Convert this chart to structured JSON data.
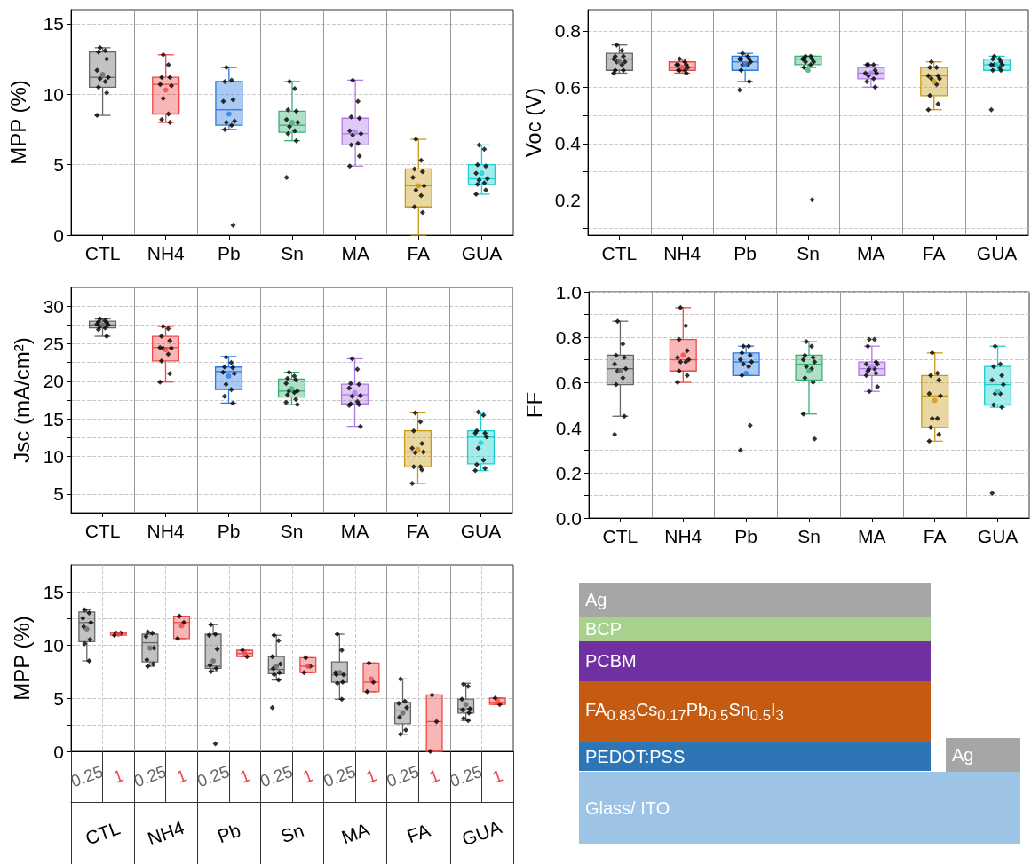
{
  "chart_data": [
    {
      "type": "box",
      "categories": [
        "CTL",
        "NH4",
        "Pb",
        "Sn",
        "MA",
        "FA",
        "GUA"
      ],
      "ylabel": "MPP (%)",
      "ylim": [
        0,
        16
      ],
      "yticks": [
        0,
        {
          "value": 2.5,
          "label": null
        },
        5,
        {
          "value": 7.5,
          "label": null
        },
        10,
        {
          "value": 12.5,
          "label": null
        },
        15
      ],
      "grid": true,
      "marker": "diamond",
      "series": [
        {
          "type": "box",
          "colors": [
            "#666666",
            "#f04848",
            "#2a7ae2",
            "#3aaf74",
            "#b07ae6",
            "#c99a14",
            "#1ccfcf"
          ],
          "boxes": [
            {
              "low": 8.5,
              "q1": 10.5,
              "median": 11.2,
              "q3": 13.0,
              "high": 13.3,
              "mean": 11.4
            },
            {
              "low": 8.0,
              "q1": 8.6,
              "median": 10.7,
              "q3": 11.2,
              "high": 12.8,
              "mean": 10.3
            },
            {
              "low": 7.5,
              "q1": 7.8,
              "median": 8.9,
              "q3": 10.9,
              "high": 11.9,
              "mean": 8.6
            },
            {
              "low": 6.7,
              "q1": 7.3,
              "median": 7.8,
              "q3": 8.8,
              "high": 10.9,
              "mean": 8.0
            },
            {
              "low": 4.9,
              "q1": 6.4,
              "median": 7.2,
              "q3": 8.3,
              "high": 11.0,
              "mean": 7.3
            },
            {
              "low": 0,
              "q1": 2.0,
              "median": 3.5,
              "q3": 4.7,
              "high": 6.8,
              "mean": 3.5
            },
            {
              "low": 2.9,
              "q1": 3.6,
              "median": 4.0,
              "q3": 5.0,
              "high": 6.4,
              "mean": 4.4
            }
          ]
        },
        {
          "type": "scatter",
          "color": "#000000",
          "x": [
            "CTL",
            "CTL",
            "CTL",
            "CTL",
            "CTL",
            "CTL",
            "CTL",
            "CTL",
            "CTL",
            "CTL",
            "CTL",
            "NH4",
            "NH4",
            "NH4",
            "NH4",
            "NH4",
            "NH4",
            "NH4",
            "NH4",
            "NH4",
            "NH4",
            "Pb",
            "Pb",
            "Pb",
            "Pb",
            "Pb",
            "Pb",
            "Pb",
            "Pb",
            "Pb",
            "Pb",
            "Sn",
            "Sn",
            "Sn",
            "Sn",
            "Sn",
            "Sn",
            "Sn",
            "Sn",
            "Sn",
            "Sn",
            "Sn",
            "MA",
            "MA",
            "MA",
            "MA",
            "MA",
            "MA",
            "MA",
            "MA",
            "MA",
            "MA",
            "MA",
            "FA",
            "FA",
            "FA",
            "FA",
            "FA",
            "FA",
            "FA",
            "FA",
            "FA",
            "FA",
            "GUA",
            "GUA",
            "GUA",
            "GUA",
            "GUA",
            "GUA",
            "GUA",
            "GUA",
            "GUA",
            "GUA",
            "GUA"
          ],
          "values": [
            13.3,
            13.1,
            13.0,
            12.5,
            11.7,
            11.2,
            11.1,
            10.9,
            10.5,
            10.1,
            8.5,
            12.8,
            12.1,
            11.2,
            11.2,
            10.7,
            10.6,
            9.7,
            8.6,
            8.2,
            8.0,
            11.9,
            11.0,
            10.9,
            9.6,
            9.5,
            8.1,
            8.0,
            7.8,
            7.5,
            0.7,
            10.9,
            10.4,
            8.9,
            8.8,
            8.2,
            8.0,
            7.7,
            7.4,
            7.2,
            6.7,
            4.1,
            11.0,
            9.5,
            8.4,
            8.3,
            7.4,
            7.2,
            7.1,
            6.5,
            6.4,
            5.6,
            4.9,
            6.8,
            5.3,
            4.7,
            4.5,
            4.1,
            3.5,
            3.2,
            2.8,
            2.0,
            1.6,
            6.4,
            6.1,
            5.0,
            4.9,
            4.4,
            4.0,
            3.9,
            3.7,
            3.6,
            3.2,
            2.9
          ]
        }
      ]
    },
    {
      "type": "box",
      "categories": [
        "CTL",
        "NH4",
        "Pb",
        "Sn",
        "MA",
        "FA",
        "GUA"
      ],
      "ylabel": "Voc (V)",
      "ylim": [
        0.075,
        0.875
      ],
      "yticks": [
        {
          "value": 0.1,
          "label": null
        },
        0.2,
        {
          "value": 0.3,
          "label": null
        },
        0.4,
        {
          "value": 0.5,
          "label": null
        },
        0.6,
        {
          "value": 0.7,
          "label": null
        },
        0.8
      ],
      "grid": true,
      "marker": "diamond",
      "series": [
        {
          "type": "box",
          "colors": [
            "#666666",
            "#f04848",
            "#2a7ae2",
            "#3aaf74",
            "#b07ae6",
            "#c99a14",
            "#1ccfcf"
          ],
          "boxes": [
            {
              "low": 0.65,
              "q1": 0.66,
              "median": 0.7,
              "q3": 0.72,
              "high": 0.75,
              "mean": 0.69
            },
            {
              "low": 0.65,
              "q1": 0.66,
              "median": 0.67,
              "q3": 0.69,
              "high": 0.7,
              "mean": 0.67
            },
            {
              "low": 0.62,
              "q1": 0.66,
              "median": 0.69,
              "q3": 0.71,
              "high": 0.72,
              "mean": 0.68
            },
            {
              "low": 0.67,
              "q1": 0.68,
              "median": 0.7,
              "q3": 0.71,
              "high": 0.71,
              "mean": 0.66
            },
            {
              "low": 0.6,
              "q1": 0.63,
              "median": 0.65,
              "q3": 0.67,
              "high": 0.68,
              "mean": 0.65
            },
            {
              "low": 0.52,
              "q1": 0.57,
              "median": 0.64,
              "q3": 0.67,
              "high": 0.69,
              "mean": 0.62
            },
            {
              "low": 0.66,
              "q1": 0.66,
              "median": 0.68,
              "q3": 0.7,
              "high": 0.71,
              "mean": 0.68
            }
          ]
        },
        {
          "type": "scatter",
          "color": "#000000",
          "x": [
            "CTL",
            "CTL",
            "CTL",
            "CTL",
            "CTL",
            "CTL",
            "CTL",
            "CTL",
            "CTL",
            "CTL",
            "CTL",
            "NH4",
            "NH4",
            "NH4",
            "NH4",
            "NH4",
            "NH4",
            "NH4",
            "NH4",
            "NH4",
            "NH4",
            "Pb",
            "Pb",
            "Pb",
            "Pb",
            "Pb",
            "Pb",
            "Pb",
            "Pb",
            "Pb",
            "Pb",
            "Pb",
            "Sn",
            "Sn",
            "Sn",
            "Sn",
            "Sn",
            "Sn",
            "Sn",
            "Sn",
            "Sn",
            "Sn",
            "MA",
            "MA",
            "MA",
            "MA",
            "MA",
            "MA",
            "MA",
            "MA",
            "MA",
            "MA",
            "FA",
            "FA",
            "FA",
            "FA",
            "FA",
            "FA",
            "FA",
            "FA",
            "FA",
            "FA",
            "FA",
            "GUA",
            "GUA",
            "GUA",
            "GUA",
            "GUA",
            "GUA",
            "GUA",
            "GUA",
            "GUA",
            "GUA",
            "GUA"
          ],
          "values": [
            0.75,
            0.73,
            0.71,
            0.71,
            0.7,
            0.69,
            0.69,
            0.68,
            0.66,
            0.66,
            0.65,
            0.7,
            0.69,
            0.68,
            0.68,
            0.68,
            0.67,
            0.66,
            0.66,
            0.66,
            0.65,
            0.72,
            0.71,
            0.7,
            0.7,
            0.7,
            0.69,
            0.68,
            0.68,
            0.66,
            0.62,
            0.59,
            0.71,
            0.71,
            0.7,
            0.7,
            0.7,
            0.69,
            0.69,
            0.68,
            0.67,
            0.2,
            0.68,
            0.68,
            0.68,
            0.66,
            0.65,
            0.65,
            0.64,
            0.63,
            0.62,
            0.6,
            0.69,
            0.67,
            0.67,
            0.64,
            0.64,
            0.63,
            0.63,
            0.61,
            0.57,
            0.54,
            0.52,
            0.71,
            0.7,
            0.7,
            0.69,
            0.68,
            0.68,
            0.68,
            0.67,
            0.66,
            0.66,
            0.52
          ]
        }
      ]
    },
    {
      "type": "box",
      "categories": [
        "CTL",
        "NH4",
        "Pb",
        "Sn",
        "MA",
        "FA",
        "GUA"
      ],
      "ylabel": "Jsc (mA/cm²)",
      "ylim": [
        2.5,
        32.5
      ],
      "yticks": [
        5,
        {
          "value": 7.5,
          "label": null
        },
        10,
        {
          "value": 12.5,
          "label": null
        },
        15,
        {
          "value": 17.5,
          "label": null
        },
        20,
        {
          "value": 22.5,
          "label": null
        },
        25,
        {
          "value": 27.5,
          "label": null
        },
        30
      ],
      "grid": true,
      "marker": "diamond",
      "series": [
        {
          "type": "box",
          "colors": [
            "#666666",
            "#f04848",
            "#2a7ae2",
            "#3aaf74",
            "#b07ae6",
            "#c99a14",
            "#1ccfcf"
          ],
          "boxes": [
            {
              "low": 26.0,
              "q1": 27.1,
              "median": 27.5,
              "q3": 28.0,
              "high": 28.3,
              "mean": 27.5
            },
            {
              "low": 19.9,
              "q1": 22.7,
              "median": 24.5,
              "q3": 26.0,
              "high": 27.3,
              "mean": 24.2
            },
            {
              "low": 17.1,
              "q1": 18.9,
              "median": 21.3,
              "q3": 21.9,
              "high": 23.3,
              "mean": 20.7
            },
            {
              "low": 16.9,
              "q1": 17.9,
              "median": 18.7,
              "q3": 20.3,
              "high": 21.2,
              "mean": 19.0
            },
            {
              "low": 14.0,
              "q1": 17.0,
              "median": 18.2,
              "q3": 19.6,
              "high": 23.0,
              "mean": 18.5
            },
            {
              "low": 6.4,
              "q1": 8.6,
              "median": 10.6,
              "q3": 13.4,
              "high": 15.8,
              "mean": 10.9
            },
            {
              "low": 8.1,
              "q1": 9.0,
              "median": 12.6,
              "q3": 13.4,
              "high": 15.9,
              "mean": 11.8
            }
          ]
        },
        {
          "type": "scatter",
          "color": "#000000",
          "x": [
            "CTL",
            "CTL",
            "CTL",
            "CTL",
            "CTL",
            "CTL",
            "CTL",
            "CTL",
            "CTL",
            "CTL",
            "NH4",
            "NH4",
            "NH4",
            "NH4",
            "NH4",
            "NH4",
            "NH4",
            "NH4",
            "NH4",
            "NH4",
            "NH4",
            "Pb",
            "Pb",
            "Pb",
            "Pb",
            "Pb",
            "Pb",
            "Pb",
            "Pb",
            "Pb",
            "Pb",
            "Sn",
            "Sn",
            "Sn",
            "Sn",
            "Sn",
            "Sn",
            "Sn",
            "Sn",
            "Sn",
            "Sn",
            "Sn",
            "Sn",
            "MA",
            "MA",
            "MA",
            "MA",
            "MA",
            "MA",
            "MA",
            "MA",
            "MA",
            "MA",
            "MA",
            "MA",
            "FA",
            "FA",
            "FA",
            "FA",
            "FA",
            "FA",
            "FA",
            "FA",
            "FA",
            "FA",
            "FA",
            "GUA",
            "GUA",
            "GUA",
            "GUA",
            "GUA",
            "GUA",
            "GUA",
            "GUA",
            "GUA",
            "GUA",
            "GUA"
          ],
          "values": [
            28.3,
            28.1,
            27.9,
            27.8,
            27.6,
            27.5,
            27.3,
            27.1,
            26.9,
            26.0,
            27.3,
            27.0,
            26.0,
            25.4,
            24.5,
            24.4,
            24.4,
            23.6,
            22.7,
            21.0,
            19.9,
            23.2,
            22.5,
            21.9,
            21.8,
            21.2,
            21.0,
            19.6,
            18.9,
            18.0,
            17.1,
            21.2,
            20.7,
            20.4,
            20.2,
            19.7,
            18.7,
            18.7,
            18.5,
            18.2,
            17.6,
            17.2,
            16.9,
            23.0,
            21.6,
            19.7,
            19.6,
            19.1,
            18.1,
            18.0,
            17.3,
            17.0,
            16.9,
            16.8,
            14.0,
            15.8,
            14.6,
            13.4,
            11.7,
            11.1,
            10.6,
            10.5,
            8.6,
            8.6,
            8.2,
            6.4,
            15.9,
            15.5,
            13.4,
            13.1,
            13.1,
            12.6,
            11.1,
            9.5,
            8.9,
            8.4,
            8.1
          ]
        }
      ]
    },
    {
      "type": "box",
      "categories": [
        "CTL",
        "NH4",
        "Pb",
        "Sn",
        "MA",
        "FA",
        "GUA"
      ],
      "ylabel": "FF",
      "ylim": [
        0,
        1
      ],
      "yticks": [
        {
          "value": 0,
          "label": "0.0"
        },
        {
          "value": 0.1,
          "label": null
        },
        0.2,
        {
          "value": 0.3,
          "label": null
        },
        0.4,
        {
          "value": 0.5,
          "label": null
        },
        0.6,
        {
          "value": 0.7,
          "label": null
        },
        0.8,
        {
          "value": 0.9,
          "label": null
        },
        {
          "value": 1,
          "label": "1.0"
        }
      ],
      "grid": true,
      "marker": "diamond",
      "series": [
        {
          "type": "box",
          "colors": [
            "#666666",
            "#f04848",
            "#2a7ae2",
            "#3aaf74",
            "#b07ae6",
            "#c99a14",
            "#1ccfcf"
          ],
          "boxes": [
            {
              "low": 0.45,
              "q1": 0.59,
              "median": 0.66,
              "q3": 0.72,
              "high": 0.87,
              "mean": 0.65
            },
            {
              "low": 0.6,
              "q1": 0.65,
              "median": 0.7,
              "q3": 0.79,
              "high": 0.93,
              "mean": 0.72
            },
            {
              "low": 0.63,
              "q1": 0.63,
              "median": 0.69,
              "q3": 0.73,
              "high": 0.76,
              "mean": 0.64
            },
            {
              "low": 0.46,
              "q1": 0.61,
              "median": 0.68,
              "q3": 0.72,
              "high": 0.78,
              "mean": 0.65
            },
            {
              "low": 0.56,
              "q1": 0.63,
              "median": 0.66,
              "q3": 0.69,
              "high": 0.76,
              "mean": 0.67
            },
            {
              "low": 0.34,
              "q1": 0.4,
              "median": 0.54,
              "q3": 0.63,
              "high": 0.73,
              "mean": 0.52
            },
            {
              "low": 0.49,
              "q1": 0.5,
              "median": 0.59,
              "q3": 0.67,
              "high": 0.76,
              "mean": 0.56
            }
          ]
        },
        {
          "type": "scatter",
          "color": "#000000",
          "x": [
            "CTL",
            "CTL",
            "CTL",
            "CTL",
            "CTL",
            "CTL",
            "CTL",
            "CTL",
            "CTL",
            "CTL",
            "CTL",
            "NH4",
            "NH4",
            "NH4",
            "NH4",
            "NH4",
            "NH4",
            "NH4",
            "NH4",
            "NH4",
            "NH4",
            "NH4",
            "Pb",
            "Pb",
            "Pb",
            "Pb",
            "Pb",
            "Pb",
            "Pb",
            "Pb",
            "Pb",
            "Pb",
            "Pb",
            "Sn",
            "Sn",
            "Sn",
            "Sn",
            "Sn",
            "Sn",
            "Sn",
            "Sn",
            "Sn",
            "Sn",
            "Sn",
            "Sn",
            "MA",
            "MA",
            "MA",
            "MA",
            "MA",
            "MA",
            "MA",
            "MA",
            "MA",
            "MA",
            "MA",
            "MA",
            "MA",
            "FA",
            "FA",
            "FA",
            "FA",
            "FA",
            "FA",
            "FA",
            "FA",
            "FA",
            "FA",
            "FA",
            "GUA",
            "GUA",
            "GUA",
            "GUA",
            "GUA",
            "GUA",
            "GUA",
            "GUA",
            "GUA",
            "GUA",
            "GUA"
          ],
          "values": [
            0.87,
            0.77,
            0.72,
            0.71,
            0.68,
            0.66,
            0.65,
            0.62,
            0.59,
            0.45,
            0.37,
            0.93,
            0.85,
            0.79,
            0.74,
            0.71,
            0.7,
            0.69,
            0.69,
            0.65,
            0.63,
            0.6,
            0.76,
            0.76,
            0.73,
            0.72,
            0.7,
            0.69,
            0.68,
            0.67,
            0.63,
            0.41,
            0.3,
            0.78,
            0.76,
            0.72,
            0.71,
            0.7,
            0.69,
            0.67,
            0.66,
            0.62,
            0.6,
            0.46,
            0.35,
            0.79,
            0.79,
            0.76,
            0.69,
            0.68,
            0.68,
            0.66,
            0.66,
            0.65,
            0.64,
            0.63,
            0.58,
            0.56,
            0.73,
            0.64,
            0.63,
            0.61,
            0.55,
            0.54,
            0.44,
            0.44,
            0.4,
            0.37,
            0.34,
            0.76,
            0.68,
            0.67,
            0.63,
            0.61,
            0.59,
            0.55,
            0.55,
            0.5,
            0.49,
            0.11
          ]
        }
      ]
    },
    {
      "type": "box",
      "categories": [
        "CTL",
        "NH4",
        "Pb",
        "Sn",
        "MA",
        "FA",
        "GUA"
      ],
      "ylabel": "MPP (%)",
      "ylim": [
        0,
        17.5
      ],
      "yticks": [
        0,
        {
          "value": 2.5,
          "label": null
        },
        5,
        {
          "value": 7.5,
          "label": null
        },
        10,
        {
          "value": 12.5,
          "label": null
        },
        15
      ],
      "grid": true,
      "marker": "diamond",
      "series": [
        {
          "type": "box",
          "name": "0.25",
          "color": "#666666",
          "boxes": [
            {
              "low": 8.5,
              "q1": 10.3,
              "median": 12.1,
              "q3": 13.1,
              "high": 13.3,
              "mean": 11.5
            },
            {
              "low": 8.0,
              "q1": 8.4,
              "median": 10.2,
              "q3": 11.0,
              "high": 11.2,
              "mean": 9.7
            },
            {
              "low": 7.5,
              "q1": 7.8,
              "median": 8.0,
              "q3": 11.0,
              "high": 11.9,
              "mean": 8.5
            },
            {
              "low": 6.7,
              "q1": 7.3,
              "median": 7.7,
              "q3": 8.9,
              "high": 10.9,
              "mean": 8.0
            },
            {
              "low": 4.9,
              "q1": 6.5,
              "median": 7.2,
              "q3": 8.4,
              "high": 11.0,
              "mean": 7.4
            },
            {
              "low": 1.6,
              "q1": 2.6,
              "median": 3.8,
              "q3": 4.6,
              "high": 6.8,
              "mean": 3.6
            },
            {
              "low": 2.9,
              "q1": 3.6,
              "median": 4.0,
              "q3": 4.9,
              "high": 6.4,
              "mean": 4.4
            }
          ]
        },
        {
          "type": "box",
          "name": "1",
          "color": "#f04848",
          "boxes": [
            {
              "low": 10.9,
              "q1": 10.9,
              "median": 11.1,
              "q3": 11.2,
              "high": 11.2,
              "mean": 11.0
            },
            {
              "low": 10.6,
              "q1": 10.6,
              "median": 12.1,
              "q3": 12.7,
              "high": 12.7,
              "mean": 11.8
            },
            {
              "low": 8.9,
              "q1": 8.9,
              "median": 9.2,
              "q3": 9.5,
              "high": 9.5,
              "mean": 9.2
            },
            {
              "low": 7.4,
              "q1": 7.4,
              "median": 8.0,
              "q3": 8.8,
              "high": 8.8,
              "mean": 8.0
            },
            {
              "low": 5.6,
              "q1": 5.6,
              "median": 6.5,
              "q3": 8.3,
              "high": 8.3,
              "mean": 6.8
            },
            {
              "low": 0,
              "q1": 0,
              "median": 2.8,
              "q3": 5.3,
              "high": 5.3
            },
            {
              "low": 4.4,
              "q1": 4.4,
              "median": 4.6,
              "q3": 5.0,
              "high": 5.0,
              "mean": 4.7
            }
          ]
        },
        {
          "type": "scatter",
          "color": "#000000",
          "x": [
            "CTL",
            "CTL",
            "CTL",
            "CTL",
            "CTL",
            "CTL",
            "CTL",
            "CTL",
            "NH4",
            "NH4",
            "NH4",
            "NH4",
            "NH4",
            "NH4",
            "NH4",
            "Pb",
            "Pb",
            "Pb",
            "Pb",
            "Pb",
            "Pb",
            "Pb",
            "Pb",
            "Sn",
            "Sn",
            "Sn",
            "Sn",
            "Sn",
            "Sn",
            "Sn",
            "Sn",
            "Sn",
            "MA",
            "MA",
            "MA",
            "MA",
            "MA",
            "MA",
            "MA",
            "MA",
            "FA",
            "FA",
            "FA",
            "FA",
            "FA",
            "FA",
            "FA",
            "GUA",
            "GUA",
            "GUA",
            "GUA",
            "GUA",
            "GUA",
            "GUA",
            "GUA"
          ],
          "values": [
            13.3,
            13.0,
            12.5,
            12.1,
            11.7,
            10.5,
            10.1,
            8.5,
            11.2,
            11.1,
            10.8,
            9.7,
            8.6,
            8.2,
            8.0,
            11.9,
            11.0,
            10.9,
            9.6,
            8.1,
            7.8,
            7.5,
            0.7,
            10.9,
            10.4,
            8.9,
            8.2,
            7.8,
            7.4,
            7.2,
            6.7,
            4.1,
            11.0,
            9.5,
            7.4,
            7.2,
            7.2,
            6.5,
            6.4,
            4.9,
            6.8,
            4.7,
            4.5,
            4.1,
            3.2,
            2.0,
            1.6,
            6.3,
            6.1,
            4.9,
            4.0,
            3.9,
            3.6,
            3.1,
            2.9
          ]
        },
        {
          "type": "scatter",
          "color": "#000000",
          "x": [
            "CTL",
            "CTL",
            "CTL",
            "NH4",
            "NH4",
            "NH4",
            "Pb",
            "Pb",
            "Sn",
            "Sn",
            "Sn",
            "MA",
            "MA",
            "MA",
            "FA",
            "FA",
            "FA",
            "GUA",
            "GUA"
          ],
          "values": [
            11.1,
            11.1,
            10.9,
            12.7,
            12.1,
            10.6,
            9.5,
            8.9,
            8.8,
            8.0,
            7.4,
            8.3,
            6.5,
            5.6,
            5.3,
            2.8,
            0,
            5.0,
            4.4
          ]
        }
      ]
    },
    {
      "type": "other",
      "annotations": [
        "Ag",
        "BCP",
        "PCBM",
        "FA$_{0.83}$Cs$_{0.17}$Pb$_{0.5}$Sn$_{0.5}$I$_{3}$",
        "PEDOT:PSS",
        "Ag",
        "Glass/ ITO"
      ],
      "colors": [
        "#a6a6a6",
        "#a9d18e",
        "#7030a0",
        "#c55a11",
        "#2e75b6",
        "#a6a6a6",
        "#9dc3e6"
      ]
    }
  ]
}
